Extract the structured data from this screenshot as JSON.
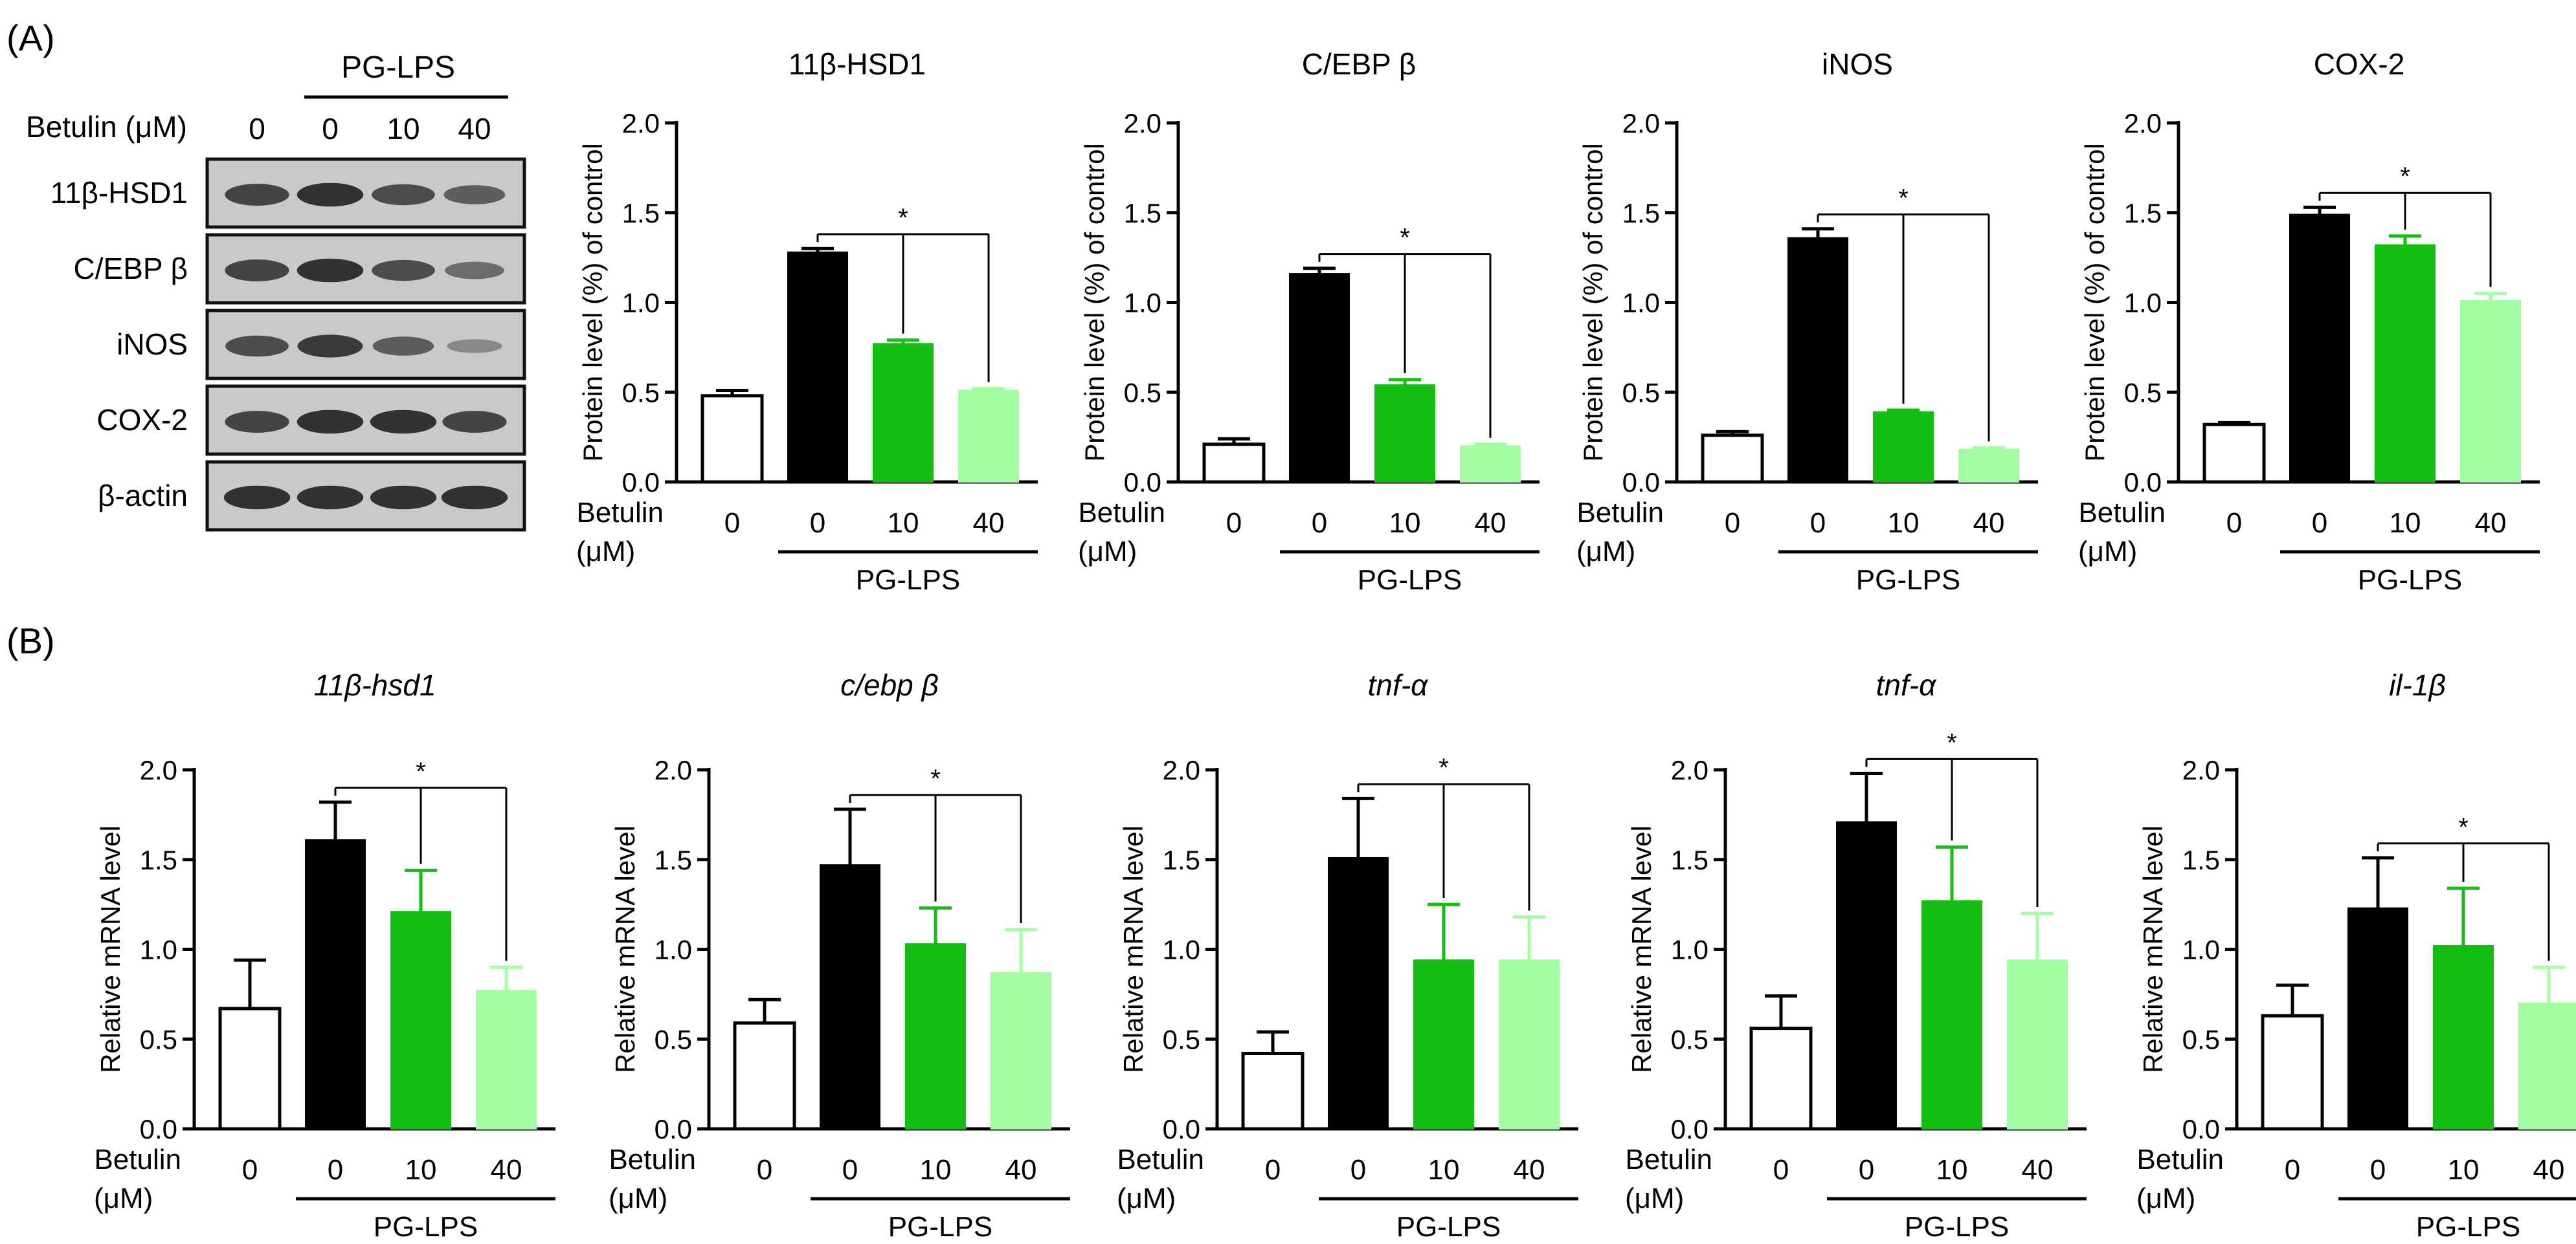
{
  "panels": {
    "a_label": "(A)",
    "b_label": "(B)"
  },
  "blot": {
    "treatment_header": "PG-LPS",
    "betulin_row_label": "Betulin  (μM)",
    "doses": [
      "0",
      "0",
      "10",
      "40"
    ],
    "rows": [
      "11β-HSD1",
      "C/EBP β",
      "iNOS",
      "COX-2",
      "β-actin"
    ]
  },
  "axis_common": {
    "betulin": "Betulin",
    "unit": "(μM)",
    "doses": [
      "0",
      "0",
      "10",
      "40"
    ],
    "group": "PG-LPS",
    "sig": "*"
  },
  "colors": {
    "ctrl": "#ffffff",
    "lps": "#000000",
    "b10": "#12be12",
    "b40": "#a3fda3"
  },
  "chart_data": [
    {
      "id": "a1",
      "type": "bar",
      "title": "11β-HSD1",
      "title_italic": false,
      "ylabel": "Protein level (%) of control",
      "ylim": [
        0,
        2
      ],
      "yticks": [
        "0.0",
        "0.5",
        "1.0",
        "1.5",
        "2.0"
      ],
      "categories": [
        "0",
        "0",
        "10",
        "40"
      ],
      "values": [
        0.48,
        1.28,
        0.77,
        0.51
      ],
      "errors": [
        0.03,
        0.02,
        0.02,
        0.01
      ]
    },
    {
      "id": "a2",
      "type": "bar",
      "title": "C/EBP β",
      "title_italic": false,
      "ylabel": "Protein level (%) of control",
      "ylim": [
        0,
        2
      ],
      "yticks": [
        "0.0",
        "0.5",
        "1.0",
        "1.5",
        "2.0"
      ],
      "categories": [
        "0",
        "0",
        "10",
        "40"
      ],
      "values": [
        0.21,
        1.16,
        0.54,
        0.2
      ],
      "errors": [
        0.03,
        0.03,
        0.03,
        0.01
      ]
    },
    {
      "id": "a3",
      "type": "bar",
      "title": "iNOS",
      "title_italic": false,
      "ylabel": "Protein level (%) of control",
      "ylim": [
        0,
        2
      ],
      "yticks": [
        "0.0",
        "0.5",
        "1.0",
        "1.5",
        "2.0"
      ],
      "categories": [
        "0",
        "0",
        "10",
        "40"
      ],
      "values": [
        0.26,
        1.36,
        0.39,
        0.18
      ],
      "errors": [
        0.02,
        0.05,
        0.01,
        0.01
      ]
    },
    {
      "id": "a4",
      "type": "bar",
      "title": "COX-2",
      "title_italic": false,
      "ylabel": "Protein level (%) of control",
      "ylim": [
        0,
        2
      ],
      "yticks": [
        "0.0",
        "0.5",
        "1.0",
        "1.5",
        "2.0"
      ],
      "categories": [
        "0",
        "0",
        "10",
        "40"
      ],
      "values": [
        0.32,
        1.49,
        1.32,
        1.01
      ],
      "errors": [
        0.01,
        0.04,
        0.05,
        0.04
      ]
    },
    {
      "id": "b1",
      "type": "bar",
      "title": "11β-hsd1",
      "title_italic": true,
      "ylabel": "Relative mRNA level",
      "ylim": [
        0,
        2
      ],
      "yticks": [
        "0.0",
        "0.5",
        "1.0",
        "1.5",
        "2.0"
      ],
      "categories": [
        "0",
        "0",
        "10",
        "40"
      ],
      "values": [
        0.67,
        1.61,
        1.21,
        0.77
      ],
      "errors": [
        0.27,
        0.21,
        0.23,
        0.13
      ]
    },
    {
      "id": "b2",
      "type": "bar",
      "title": "c/ebp β",
      "title_italic": true,
      "ylabel": "Relative mRNA level",
      "ylim": [
        0,
        2
      ],
      "yticks": [
        "0.0",
        "0.5",
        "1.0",
        "1.5",
        "2.0"
      ],
      "categories": [
        "0",
        "0",
        "10",
        "40"
      ],
      "values": [
        0.59,
        1.47,
        1.03,
        0.87
      ],
      "errors": [
        0.13,
        0.31,
        0.2,
        0.24
      ]
    },
    {
      "id": "b3",
      "type": "bar",
      "title": "tnf-α",
      "title_italic": true,
      "ylabel": "Relative mRNA level",
      "ylim": [
        0,
        2
      ],
      "yticks": [
        "0.0",
        "0.5",
        "1.0",
        "1.5",
        "2.0"
      ],
      "categories": [
        "0",
        "0",
        "10",
        "40"
      ],
      "values": [
        0.42,
        1.51,
        0.94,
        0.94
      ],
      "errors": [
        0.12,
        0.33,
        0.31,
        0.24
      ]
    },
    {
      "id": "b4",
      "type": "bar",
      "title": "tnf-α",
      "title_italic": true,
      "ylabel": "Relative mRNA level",
      "ylim": [
        0,
        2
      ],
      "yticks": [
        "0.0",
        "0.5",
        "1.0",
        "1.5",
        "2.0"
      ],
      "categories": [
        "0",
        "0",
        "10",
        "40"
      ],
      "values": [
        0.56,
        1.71,
        1.27,
        0.94
      ],
      "errors": [
        0.18,
        0.27,
        0.3,
        0.26
      ]
    },
    {
      "id": "b5",
      "type": "bar",
      "title": "il-1β",
      "title_italic": true,
      "ylabel": "Relative mRNA level",
      "ylim": [
        0,
        2
      ],
      "yticks": [
        "0.0",
        "0.5",
        "1.0",
        "1.5",
        "2.0"
      ],
      "categories": [
        "0",
        "0",
        "10",
        "40"
      ],
      "values": [
        0.63,
        1.23,
        1.02,
        0.7
      ],
      "errors": [
        0.17,
        0.28,
        0.32,
        0.2
      ]
    }
  ]
}
